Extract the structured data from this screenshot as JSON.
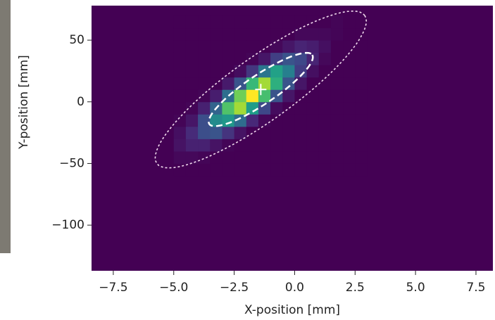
{
  "chart_data": {
    "type": "heatmap",
    "xlabel": "X-position [mm]",
    "ylabel": "Y-position [mm]",
    "xlim": [
      -8.4,
      8.2
    ],
    "ylim": [
      -137,
      78
    ],
    "xticks": [
      {
        "value": -7.5,
        "label": "−7.5"
      },
      {
        "value": -5,
        "label": "−5.0"
      },
      {
        "value": -2.5,
        "label": "−2.5"
      },
      {
        "value": 0,
        "label": "0.0"
      },
      2.5,
      {
        "value": 5,
        "label": "5.0"
      },
      7.5
    ],
    "yticks": [
      50,
      0,
      {
        "value": -50,
        "label": "−50"
      },
      {
        "value": -100,
        "label": "−100"
      }
    ],
    "colormap": "viridis",
    "zlim": [
      0,
      100
    ],
    "x_edges": [
      -5,
      -4.5,
      -4,
      -3.5,
      -3,
      -2.5,
      -2,
      -1.5,
      -1,
      -0.5,
      0,
      0.5,
      1,
      1.5,
      2,
      2.5,
      3
    ],
    "y_edges": [
      -60,
      -50,
      -40,
      -30,
      -20,
      -10,
      0,
      10,
      20,
      30,
      40,
      50,
      60,
      70
    ],
    "z": [
      [
        0,
        0,
        0,
        0,
        0,
        0,
        0,
        0,
        0,
        0,
        0,
        0,
        0,
        0,
        0,
        0
      ],
      [
        2,
        2,
        1,
        0,
        0,
        0,
        0,
        0,
        0,
        0,
        0,
        0,
        0,
        0,
        0,
        0
      ],
      [
        5,
        9,
        9,
        5,
        1,
        0,
        0,
        0,
        0,
        0,
        0,
        0,
        0,
        0,
        0,
        0
      ],
      [
        4,
        12,
        24,
        26,
        15,
        5,
        0,
        0,
        0,
        0,
        0,
        0,
        0,
        0,
        0,
        0
      ],
      [
        1,
        6,
        24,
        48,
        53,
        35,
        11,
        2,
        0,
        0,
        0,
        0,
        0,
        0,
        0,
        0
      ],
      [
        0,
        1,
        9,
        32,
        72,
        86,
        55,
        22,
        3,
        0,
        0,
        0,
        0,
        0,
        0,
        0
      ],
      [
        0,
        0,
        1,
        8,
        36,
        78,
        100,
        70,
        26,
        6,
        0,
        0,
        0,
        0,
        0,
        0
      ],
      [
        0,
        0,
        0,
        0,
        7,
        26,
        67,
        86,
        63,
        26,
        6,
        0,
        0,
        0,
        0,
        0
      ],
      [
        0,
        0,
        0,
        0,
        0,
        3,
        16,
        39,
        57,
        43,
        18,
        4,
        0,
        0,
        0,
        0
      ],
      [
        0,
        0,
        0,
        0,
        0,
        0,
        1,
        6,
        19,
        26,
        22,
        10,
        2,
        0,
        0,
        0
      ],
      [
        0,
        0,
        0,
        0,
        0,
        0,
        0,
        0,
        2,
        6,
        10,
        8,
        4,
        0,
        0,
        0
      ],
      [
        0,
        0,
        0,
        0,
        0,
        0,
        0,
        0,
        0,
        0,
        2,
        2,
        2,
        1,
        0,
        0
      ],
      [
        0,
        0,
        0,
        0,
        0,
        0,
        0,
        0,
        0,
        0,
        0,
        0,
        0,
        1,
        0,
        0
      ]
    ],
    "ellipses": [
      {
        "center": [
          -1.4,
          10
        ],
        "major_end": [
          0.73,
          38
        ],
        "minor_end": [
          -1.08,
          0
        ],
        "color": "#ffffff",
        "linestyle": "dashed"
      },
      {
        "center": [
          -1.4,
          10
        ],
        "major_end": [
          2.9,
          70
        ],
        "minor_end": [
          -0.64,
          -11
        ],
        "color": "#f2dcef",
        "linestyle": "dotted"
      }
    ],
    "marker": [
      -1.4,
      10
    ],
    "marker_color": "#ffffff"
  }
}
